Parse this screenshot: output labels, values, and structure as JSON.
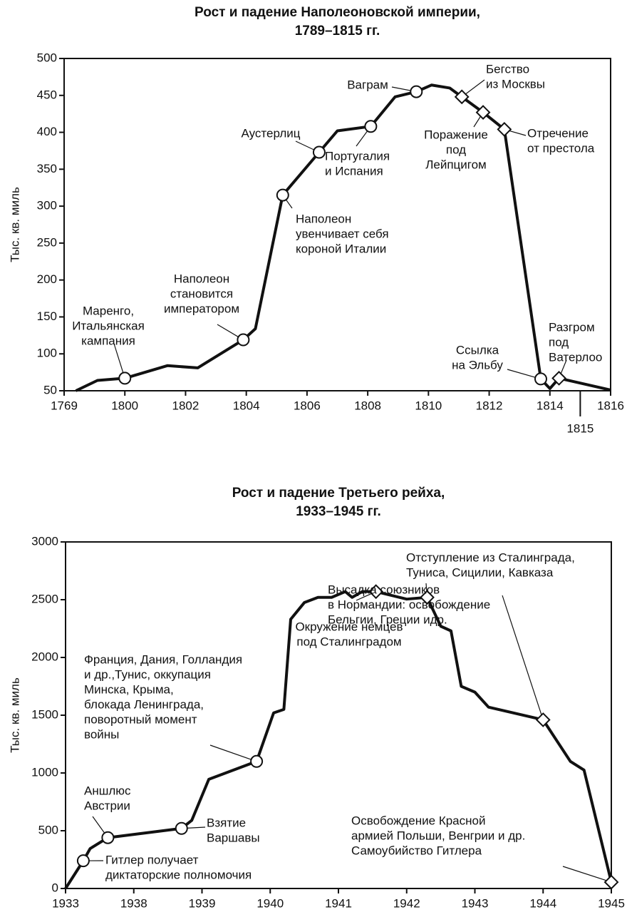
{
  "chart_data": [
    {
      "type": "line",
      "title": "Рост и падение Наполеоновской империи,",
      "subtitle": "1789–1815 гг.",
      "y_label": "Тыс. кв. миль",
      "color": "#111111",
      "x": [
        1775,
        1786,
        1800,
        1801.4,
        1802.4,
        1803.9,
        1804.3,
        1805.2,
        1806.4,
        1807,
        1808.1,
        1808.9,
        1809.6,
        1810.1,
        1810.7,
        1811.1,
        1811.8,
        1812.5,
        1813.7,
        1814,
        1814.3,
        1816
      ],
      "values": [
        50,
        64,
        67,
        84,
        81,
        119,
        134,
        315,
        373,
        402,
        408,
        448,
        455,
        464,
        460,
        448,
        427,
        404,
        66,
        53,
        67,
        51
      ],
      "markers": [
        null,
        null,
        "circle",
        null,
        null,
        "circle",
        null,
        "circle",
        "circle",
        null,
        "circle",
        null,
        "circle",
        null,
        null,
        "diamond",
        "diamond",
        "diamond",
        "circle",
        null,
        "diamond",
        null
      ],
      "annotations": [
        [
          "Маренго,",
          "Итальянская",
          "кампания"
        ],
        [
          "Наполеон",
          "становится",
          "императором"
        ],
        [
          "Наполеон",
          "увенчивает себя",
          "короной Италии"
        ],
        [
          "Аустерлиц"
        ],
        [
          "Португалия",
          "и Испания"
        ],
        [
          "Ваграм"
        ],
        [
          "Бегство",
          "из Москвы"
        ],
        [
          "Поражение",
          "под",
          "Лейпцигом"
        ],
        [
          "Отречение",
          "от престола"
        ],
        [
          "Ссылка",
          "на Эльбу"
        ],
        [
          "Разгром",
          "под",
          "Ватерлоо"
        ]
      ],
      "xlim": [
        1769,
        1816
      ],
      "xticks": [
        1769,
        1800,
        1802,
        1804,
        1806,
        1808,
        1810,
        1812,
        1814,
        1816
      ],
      "xticks_secondary": [
        1815
      ],
      "ylim": [
        50,
        500
      ],
      "yticks": [
        50,
        100,
        150,
        200,
        250,
        300,
        350,
        400,
        450,
        500
      ]
    },
    {
      "type": "line",
      "title": "Рост и падение Третьего рейха,",
      "subtitle": "1933–1945 гг.",
      "y_label": "Тыс. кв. миль",
      "color": "#111111",
      "x": [
        1933,
        1934.3,
        1934.8,
        1936.1,
        1938.7,
        1938.85,
        1939.1,
        1939.8,
        1940.05,
        1940.2,
        1940.3,
        1940.5,
        1940.7,
        1940.9,
        1941.1,
        1941.2,
        1941.35,
        1941.55,
        1942,
        1942.3,
        1942.5,
        1942.65,
        1942.8,
        1943,
        1943.2,
        1944,
        1944.4,
        1944.6,
        1945
      ],
      "values": [
        0,
        240,
        345,
        440,
        520,
        590,
        945,
        1100,
        1520,
        1550,
        2330,
        2475,
        2520,
        2520,
        2570,
        2520,
        2570,
        2570,
        2505,
        2520,
        2270,
        2230,
        1750,
        1700,
        1570,
        1460,
        1100,
        1025,
        55
      ],
      "markers": [
        null,
        "circle",
        null,
        "circle",
        "circle",
        null,
        null,
        "circle",
        null,
        null,
        null,
        null,
        null,
        null,
        null,
        null,
        null,
        "diamond",
        null,
        "diamond",
        null,
        null,
        null,
        null,
        null,
        "diamond",
        null,
        null,
        "diamond"
      ],
      "annotations": [
        [
          "Гитлер получает",
          "диктаторские полномочия"
        ],
        [
          "Аншлюс",
          "Австрии"
        ],
        [
          "Взятие",
          "Варшавы"
        ],
        [
          "Франция, Дания, Голландия",
          "и др.,Тунис, оккупация",
          "Минска, Крыма,",
          "блокада Ленинграда,",
          "поворотный момент",
          "войны"
        ],
        [
          "Окружение немцев",
          "под Сталинградом"
        ],
        [
          "Отступление из Сталинграда,",
          "Туниса, Сицилии, Кавказа"
        ],
        [
          "Высадка союзников",
          "в Нормандии: освобождение",
          "Бельгии, Греции идр."
        ],
        [
          "Освобождение Красной",
          "армией Польши, Венгрии и др.",
          "Самоубийство Гитлера"
        ]
      ],
      "xlim": [
        1933,
        1945
      ],
      "xticks": [
        1933,
        1938,
        1939,
        1940,
        1941,
        1942,
        1943,
        1944,
        1945
      ],
      "ylim": [
        0,
        3000
      ],
      "yticks": [
        0,
        500,
        1000,
        1500,
        2000,
        2500,
        3000
      ]
    }
  ]
}
